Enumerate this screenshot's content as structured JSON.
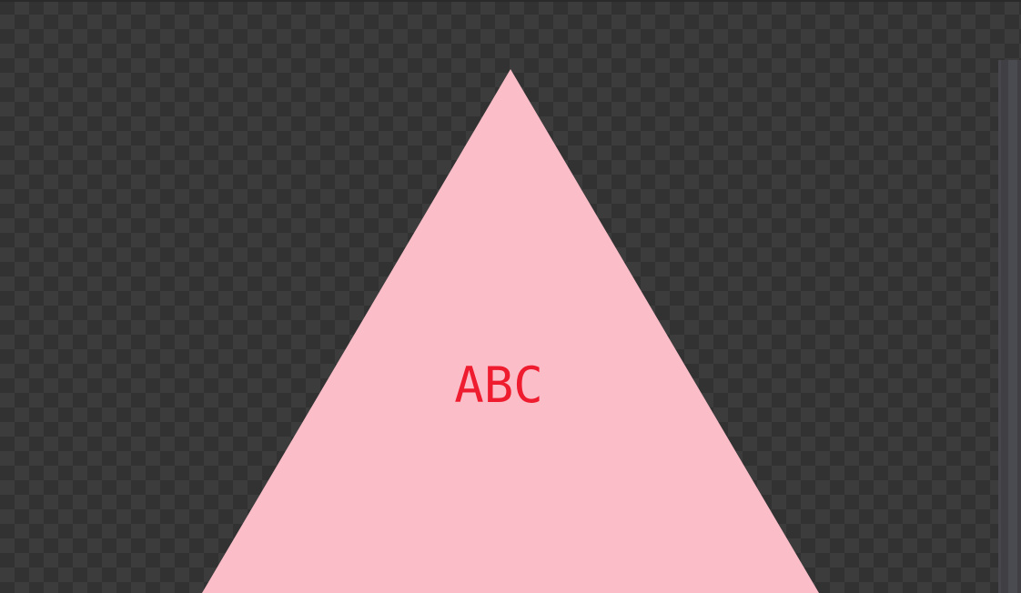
{
  "canvas": {
    "background": "checkerboard-transparency",
    "checker_dark": "#323232",
    "checker_light": "#3c3c3c"
  },
  "shape": {
    "type": "triangle",
    "fill": "#fbbec9",
    "label": "ABC",
    "label_color": "#ee1c2e"
  },
  "scrollbar": {
    "orientation": "vertical"
  }
}
